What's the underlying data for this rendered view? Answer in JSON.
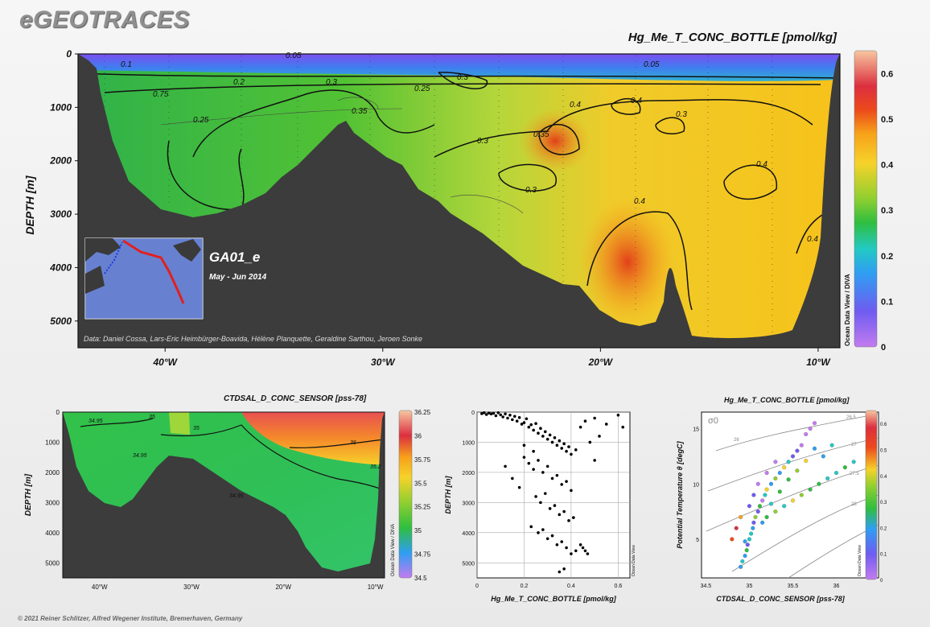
{
  "header": {
    "logo": "eGEOTRACES"
  },
  "footer": {
    "copyright": "© 2021 Reiner Schlitzer, Alfred Wegener Institute, Bremerhaven, Germany"
  },
  "chart_data": [
    {
      "type": "heatmap",
      "title": "Hg_Me_T_CONC_BOTTLE [pmol/kg]",
      "ylabel": "DEPTH [m]",
      "xlabel": "",
      "x_ticks": [
        "40°W",
        "30°W",
        "20°W",
        "10°W"
      ],
      "y_ticks": [
        "0",
        "1000",
        "2000",
        "3000",
        "4000",
        "5000"
      ],
      "ylim": [
        0,
        5500
      ],
      "xlim_deg_west": [
        44,
        9
      ],
      "colorbar": {
        "ticks": [
          "0",
          "0.1",
          "0.2",
          "0.3",
          "0.4",
          "0.5",
          "0.6"
        ],
        "range": [
          0,
          0.65
        ]
      },
      "contour_labels": [
        "0.1",
        "0.05",
        "0.05",
        "0.2",
        "0.3",
        "0.3",
        "0.25",
        "0.75",
        "0.35",
        "0.25",
        "0.4",
        "0.4",
        "0.3",
        "0.35",
        "0.3",
        "0.3",
        "0.4",
        "0.4",
        "0.4"
      ],
      "section_name": "GA01_e",
      "section_dates": "May - Jun 2014",
      "credits": "Data: Daniel Cossa, Lars-Eric Heimbürger-Boavida, Hélène Planquette, Geraldine Sarthou, Jeroen Sonke",
      "watermark": "Ocean Data View / DIVA",
      "legend": "none"
    },
    {
      "type": "heatmap",
      "title": "CTDSAL_D_CONC_SENSOR [pss-78]",
      "ylabel": "DEPTH [m]",
      "x_ticks": [
        "40°W",
        "30°W",
        "20°W",
        "10°W"
      ],
      "y_ticks": [
        "0",
        "1000",
        "2000",
        "3000",
        "4000",
        "5000"
      ],
      "colorbar": {
        "ticks": [
          "36.25",
          "36",
          "35.75",
          "35.5",
          "35.25",
          "35",
          "34.75",
          "34.5"
        ],
        "range": [
          34.5,
          36.25
        ]
      },
      "contour_labels": [
        "34.95",
        "35",
        "35",
        "34.95",
        "34.95",
        "36",
        "35.2"
      ],
      "watermark": "Ocean Data View / DIVA"
    },
    {
      "type": "scatter",
      "xlabel": "Hg_Me_T_CONC_BOTTLE [pmol/kg]",
      "ylabel": "DEPTH [m]",
      "x_ticks": [
        "0",
        "0.2",
        "0.4",
        "0.6"
      ],
      "y_ticks": [
        "0",
        "1000",
        "2000",
        "3000",
        "4000",
        "5000"
      ],
      "xlim": [
        0,
        0.65
      ],
      "ylim": [
        0,
        5500
      ],
      "watermark": "Ocean Data View",
      "points": [
        [
          0.02,
          50
        ],
        [
          0.03,
          20
        ],
        [
          0.04,
          80
        ],
        [
          0.05,
          30
        ],
        [
          0.06,
          60
        ],
        [
          0.07,
          40
        ],
        [
          0.08,
          120
        ],
        [
          0.09,
          20
        ],
        [
          0.1,
          90
        ],
        [
          0.11,
          160
        ],
        [
          0.12,
          60
        ],
        [
          0.13,
          200
        ],
        [
          0.14,
          100
        ],
        [
          0.15,
          250
        ],
        [
          0.16,
          140
        ],
        [
          0.17,
          300
        ],
        [
          0.18,
          180
        ],
        [
          0.19,
          400
        ],
        [
          0.2,
          350
        ],
        [
          0.21,
          220
        ],
        [
          0.22,
          500
        ],
        [
          0.23,
          420
        ],
        [
          0.24,
          600
        ],
        [
          0.25,
          380
        ],
        [
          0.26,
          700
        ],
        [
          0.27,
          540
        ],
        [
          0.28,
          800
        ],
        [
          0.29,
          650
        ],
        [
          0.3,
          900
        ],
        [
          0.31,
          760
        ],
        [
          0.32,
          1000
        ],
        [
          0.33,
          850
        ],
        [
          0.34,
          1100
        ],
        [
          0.35,
          950
        ],
        [
          0.36,
          1200
        ],
        [
          0.37,
          1050
        ],
        [
          0.38,
          1300
        ],
        [
          0.39,
          1150
        ],
        [
          0.4,
          1400
        ],
        [
          0.42,
          1250
        ],
        [
          0.44,
          500
        ],
        [
          0.46,
          300
        ],
        [
          0.5,
          200
        ],
        [
          0.55,
          400
        ],
        [
          0.6,
          100
        ],
        [
          0.62,
          500
        ],
        [
          0.2,
          1500
        ],
        [
          0.22,
          1700
        ],
        [
          0.24,
          1900
        ],
        [
          0.26,
          1600
        ],
        [
          0.28,
          2000
        ],
        [
          0.3,
          1800
        ],
        [
          0.32,
          2200
        ],
        [
          0.34,
          2100
        ],
        [
          0.36,
          2400
        ],
        [
          0.38,
          2300
        ],
        [
          0.4,
          2600
        ],
        [
          0.25,
          2800
        ],
        [
          0.27,
          3000
        ],
        [
          0.29,
          2700
        ],
        [
          0.31,
          3200
        ],
        [
          0.33,
          3100
        ],
        [
          0.35,
          3400
        ],
        [
          0.37,
          3300
        ],
        [
          0.39,
          3600
        ],
        [
          0.41,
          3500
        ],
        [
          0.23,
          3800
        ],
        [
          0.26,
          4000
        ],
        [
          0.28,
          3900
        ],
        [
          0.3,
          4200
        ],
        [
          0.32,
          4100
        ],
        [
          0.34,
          4400
        ],
        [
          0.36,
          4300
        ],
        [
          0.38,
          4500
        ],
        [
          0.4,
          4700
        ],
        [
          0.42,
          4600
        ],
        [
          0.44,
          4400
        ],
        [
          0.35,
          5300
        ],
        [
          0.37,
          5200
        ],
        [
          0.15,
          2200
        ],
        [
          0.18,
          2500
        ],
        [
          0.12,
          1800
        ],
        [
          0.48,
          1000
        ],
        [
          0.5,
          1600
        ],
        [
          0.52,
          800
        ],
        [
          0.45,
          4500
        ],
        [
          0.46,
          4600
        ],
        [
          0.47,
          4700
        ],
        [
          0.2,
          1100
        ],
        [
          0.24,
          1300
        ]
      ]
    },
    {
      "type": "scatter",
      "title": "Hg_Me_T_CONC_BOTTLE [pmol/kg]",
      "xlabel": "CTDSAL_D_CONC_SENSOR [pss-78]",
      "ylabel": "Potential Temperature θ [degC]",
      "x_ticks": [
        "34.5",
        "35",
        "35.5",
        "36"
      ],
      "y_ticks": [
        "5",
        "10",
        "15"
      ],
      "xlim": [
        34.45,
        36.3
      ],
      "ylim": [
        1.5,
        16.5
      ],
      "colorbar": {
        "ticks": [
          "0.6",
          "0.5",
          "0.4",
          "0.3",
          "0.2",
          "0.1",
          "0"
        ],
        "range": [
          0,
          0.65
        ]
      },
      "isopycnal_labels": [
        "σ0",
        "26",
        "26.5",
        "27",
        "27.5",
        "28"
      ],
      "watermark": "Ocean Data View",
      "points": [
        [
          34.9,
          2.5,
          0.25
        ],
        [
          34.92,
          3,
          0.3
        ],
        [
          34.95,
          3.5,
          0.2
        ],
        [
          34.97,
          4,
          0.35
        ],
        [
          34.98,
          4.5,
          0.15
        ],
        [
          35,
          5,
          0.3
        ],
        [
          35.02,
          5.5,
          0.28
        ],
        [
          35.04,
          6,
          0.22
        ],
        [
          35.05,
          6.5,
          0.12
        ],
        [
          35.07,
          7,
          0.4
        ],
        [
          35.1,
          7.5,
          0.18
        ],
        [
          35.12,
          8,
          0.35
        ],
        [
          35.15,
          8.5,
          0.08
        ],
        [
          35.18,
          9,
          0.3
        ],
        [
          35.2,
          9.5,
          0.45
        ],
        [
          35.25,
          10,
          0.25
        ],
        [
          35.3,
          10.5,
          0.38
        ],
        [
          35.35,
          11,
          0.2
        ],
        [
          35.4,
          11.5,
          0.42
        ],
        [
          35.45,
          12,
          0.3
        ],
        [
          35.5,
          12.5,
          0.15
        ],
        [
          35.55,
          13,
          0.1
        ],
        [
          35.6,
          13.5,
          0.05
        ],
        [
          35.65,
          14.5,
          0.03
        ],
        [
          35.7,
          15,
          0.02
        ],
        [
          35.75,
          15.5,
          0.01
        ],
        [
          35.2,
          7,
          0.35
        ],
        [
          35.3,
          7.5,
          0.4
        ],
        [
          35.4,
          8,
          0.3
        ],
        [
          35.5,
          8.5,
          0.45
        ],
        [
          35.6,
          9,
          0.38
        ],
        [
          35.7,
          9.5,
          0.32
        ],
        [
          35.8,
          10,
          0.36
        ],
        [
          35.9,
          10.5,
          0.3
        ],
        [
          36,
          11,
          0.28
        ],
        [
          36.1,
          11.5,
          0.34
        ],
        [
          36.2,
          12,
          0.3
        ],
        [
          34.8,
          5,
          0.55
        ],
        [
          34.85,
          6,
          0.6
        ],
        [
          34.9,
          7,
          0.5
        ],
        [
          35,
          8,
          0.15
        ],
        [
          35.05,
          9,
          0.1
        ],
        [
          35.1,
          10,
          0.08
        ],
        [
          35.2,
          11,
          0.06
        ],
        [
          35.3,
          12,
          0.04
        ],
        [
          34.95,
          4.8,
          0.2
        ],
        [
          35.15,
          6.5,
          0.25
        ],
        [
          35.25,
          8.2,
          0.3
        ],
        [
          35.35,
          9.3,
          0.33
        ],
        [
          35.45,
          10.4,
          0.36
        ],
        [
          35.55,
          11.2,
          0.4
        ],
        [
          35.65,
          12.1,
          0.42
        ],
        [
          35.75,
          13.2,
          0.2
        ],
        [
          35.85,
          12.5,
          0.25
        ],
        [
          35.95,
          13.5,
          0.3
        ]
      ]
    }
  ]
}
